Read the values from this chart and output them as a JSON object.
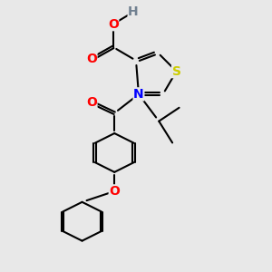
{
  "background_color": "#e8e8e8",
  "atom_colors": {
    "O": "#ff0000",
    "N": "#0000ff",
    "S": "#cccc00",
    "H": "#708090",
    "C": "#000000"
  },
  "bond_lw": 1.5,
  "font_size": 10
}
